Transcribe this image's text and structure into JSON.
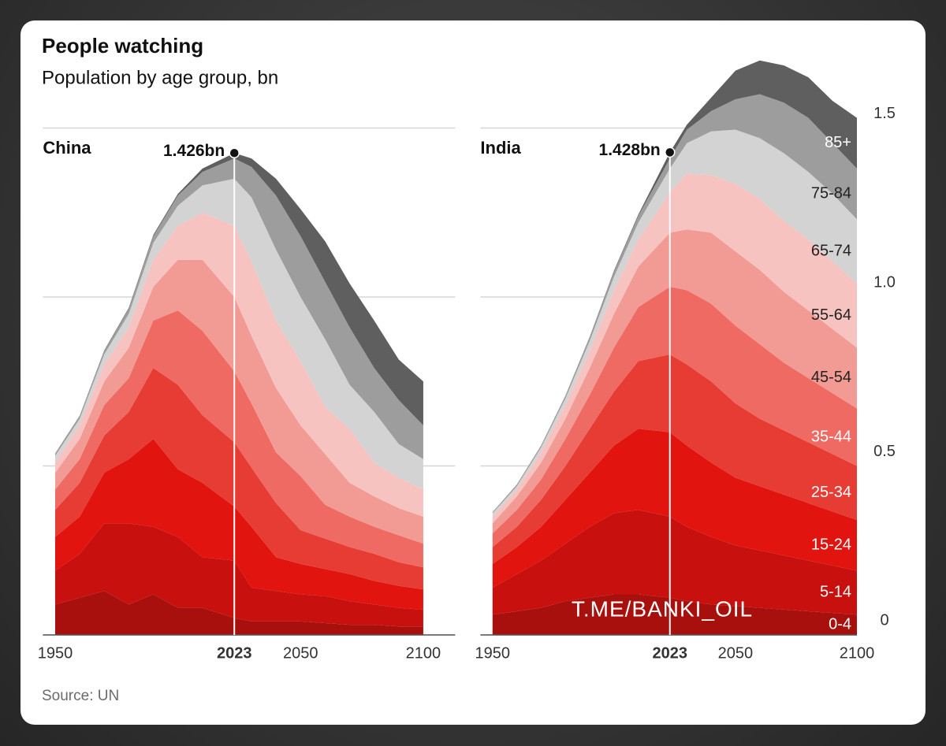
{
  "header": {
    "title": "People watching",
    "subtitle": "Population by age group, bn"
  },
  "source": "Source: UN",
  "watermark": "T.ME/BANKI_OIL",
  "chart_data": [
    {
      "type": "area",
      "title": "China",
      "x": [
        1950,
        1960,
        1970,
        1980,
        1990,
        2000,
        2010,
        2023,
        2030,
        2040,
        2050,
        2060,
        2070,
        2080,
        2090,
        2100
      ],
      "xlim": [
        1945,
        2113
      ],
      "ylim": [
        0,
        1.75
      ],
      "xticks": [
        1950,
        2023,
        2050,
        2100
      ],
      "yticks": [
        0,
        0.5,
        1,
        1.5
      ],
      "grid": true,
      "ytick_labels": false,
      "annotation": {
        "x": 2023,
        "y": 1.426,
        "label": "1.426bn"
      },
      "series": [
        {
          "color": "#a8100e",
          "values": [
            0.09,
            0.11,
            0.13,
            0.09,
            0.12,
            0.08,
            0.08,
            0.05,
            0.04,
            0.04,
            0.04,
            0.035,
            0.03,
            0.03,
            0.025,
            0.025
          ]
        },
        {
          "color": "#c8100f",
          "values": [
            0.1,
            0.13,
            0.2,
            0.24,
            0.2,
            0.21,
            0.15,
            0.17,
            0.1,
            0.09,
            0.08,
            0.08,
            0.07,
            0.06,
            0.055,
            0.05
          ]
        },
        {
          "color": "#e2140f",
          "values": [
            0.1,
            0.11,
            0.15,
            0.19,
            0.26,
            0.2,
            0.22,
            0.16,
            0.18,
            0.1,
            0.09,
            0.08,
            0.08,
            0.07,
            0.065,
            0.06
          ]
        },
        {
          "color": "#e63c33",
          "values": [
            0.08,
            0.1,
            0.11,
            0.14,
            0.21,
            0.25,
            0.2,
            0.19,
            0.175,
            0.16,
            0.1,
            0.09,
            0.08,
            0.08,
            0.07,
            0.065
          ]
        },
        {
          "color": "#ee6a62",
          "values": [
            0.06,
            0.07,
            0.09,
            0.1,
            0.14,
            0.22,
            0.25,
            0.21,
            0.19,
            0.15,
            0.16,
            0.1,
            0.09,
            0.08,
            0.08,
            0.07
          ]
        },
        {
          "color": "#f29a94",
          "values": [
            0.05,
            0.06,
            0.07,
            0.09,
            0.1,
            0.15,
            0.21,
            0.22,
            0.2,
            0.19,
            0.15,
            0.15,
            0.1,
            0.09,
            0.08,
            0.08
          ]
        },
        {
          "color": "#f7c3c0",
          "values": [
            0.03,
            0.04,
            0.05,
            0.06,
            0.08,
            0.1,
            0.14,
            0.21,
            0.22,
            0.2,
            0.19,
            0.14,
            0.16,
            0.1,
            0.09,
            0.08
          ]
        },
        {
          "color": "#d3d3d3",
          "values": [
            0.02,
            0.02,
            0.03,
            0.04,
            0.05,
            0.06,
            0.08,
            0.14,
            0.19,
            0.21,
            0.19,
            0.2,
            0.13,
            0.15,
            0.1,
            0.09
          ]
        },
        {
          "color": "#9d9d9d",
          "values": [
            0.006,
            0.008,
            0.01,
            0.015,
            0.02,
            0.03,
            0.04,
            0.06,
            0.09,
            0.16,
            0.18,
            0.17,
            0.17,
            0.13,
            0.13,
            0.1
          ]
        },
        {
          "color": "#5f5f5f",
          "values": [
            0.001,
            0.001,
            0.002,
            0.003,
            0.004,
            0.005,
            0.01,
            0.016,
            0.025,
            0.05,
            0.08,
            0.12,
            0.13,
            0.14,
            0.12,
            0.13
          ]
        }
      ]
    },
    {
      "type": "area",
      "title": "India",
      "x": [
        1950,
        1960,
        1970,
        1980,
        1990,
        2000,
        2010,
        2023,
        2030,
        2040,
        2050,
        2060,
        2070,
        2080,
        2090,
        2100
      ],
      "xlim": [
        1945,
        2100
      ],
      "ylim": [
        0,
        1.75
      ],
      "xticks": [
        1950,
        2023,
        2050,
        2100
      ],
      "yticks": [
        0,
        0.5,
        {
          "value": 1,
          "label": "1.0"
        },
        1.5
      ],
      "grid": true,
      "ytick_labels": true,
      "annotation": {
        "x": 2023,
        "y": 1.428,
        "label": "1.428bn"
      },
      "series": [
        {
          "name": "0-4",
          "color": "#a8100e",
          "values": [
            0.06,
            0.07,
            0.08,
            0.1,
            0.11,
            0.12,
            0.12,
            0.11,
            0.1,
            0.09,
            0.085,
            0.08,
            0.075,
            0.07,
            0.065,
            0.06
          ]
        },
        {
          "name": "5-14",
          "color": "#c8100f",
          "values": [
            0.08,
            0.11,
            0.14,
            0.17,
            0.21,
            0.24,
            0.25,
            0.24,
            0.22,
            0.2,
            0.18,
            0.17,
            0.16,
            0.15,
            0.14,
            0.13
          ]
        },
        {
          "name": "15-24",
          "color": "#e2140f",
          "values": [
            0.07,
            0.08,
            0.1,
            0.13,
            0.16,
            0.2,
            0.24,
            0.25,
            0.24,
            0.22,
            0.2,
            0.19,
            0.18,
            0.17,
            0.16,
            0.15
          ]
        },
        {
          "name": "25-34",
          "color": "#e63c33",
          "values": [
            0.05,
            0.06,
            0.08,
            0.1,
            0.13,
            0.16,
            0.2,
            0.23,
            0.24,
            0.24,
            0.22,
            0.2,
            0.19,
            0.18,
            0.17,
            0.16
          ]
        },
        {
          "name": "35-44",
          "color": "#ee6a62",
          "values": [
            0.04,
            0.05,
            0.06,
            0.08,
            0.1,
            0.13,
            0.16,
            0.2,
            0.22,
            0.23,
            0.23,
            0.22,
            0.2,
            0.19,
            0.18,
            0.17
          ]
        },
        {
          "name": "45-54",
          "color": "#f29a94",
          "values": [
            0.03,
            0.04,
            0.05,
            0.06,
            0.08,
            0.1,
            0.12,
            0.16,
            0.18,
            0.21,
            0.22,
            0.22,
            0.21,
            0.2,
            0.19,
            0.18
          ]
        },
        {
          "name": "55-64",
          "color": "#f7c3c0",
          "values": [
            0.02,
            0.02,
            0.03,
            0.04,
            0.05,
            0.07,
            0.08,
            0.12,
            0.165,
            0.17,
            0.2,
            0.21,
            0.21,
            0.21,
            0.2,
            0.19
          ]
        },
        {
          "name": "65-74",
          "color": "#d3d3d3",
          "values": [
            0.01,
            0.01,
            0.015,
            0.02,
            0.03,
            0.04,
            0.05,
            0.07,
            0.09,
            0.13,
            0.16,
            0.18,
            0.2,
            0.2,
            0.2,
            0.19
          ]
        },
        {
          "name": "75-84",
          "color": "#9d9d9d",
          "values": [
            0.003,
            0.004,
            0.005,
            0.007,
            0.01,
            0.015,
            0.02,
            0.03,
            0.04,
            0.06,
            0.09,
            0.13,
            0.15,
            0.16,
            0.15,
            0.15
          ]
        },
        {
          "name": "85+",
          "color": "#5f5f5f",
          "values": [
            0.0005,
            0.001,
            0.001,
            0.001,
            0.002,
            0.003,
            0.004,
            0.018,
            0.015,
            0.04,
            0.085,
            0.1,
            0.11,
            0.12,
            0.125,
            0.15
          ]
        }
      ]
    }
  ]
}
